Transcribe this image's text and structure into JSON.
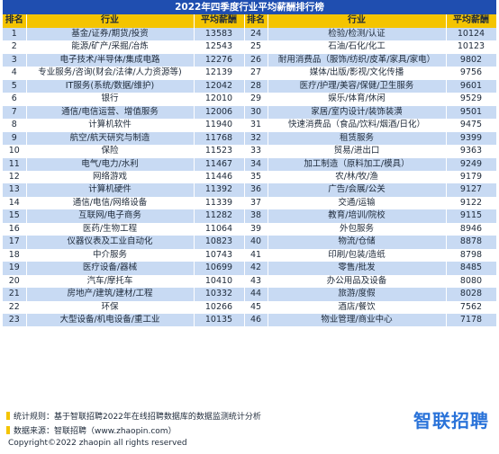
{
  "title": "2022年四季度行业平均薪酬排行榜",
  "headers": {
    "rank": "排名",
    "industry": "行业",
    "salary": "平均薪酬"
  },
  "rows": [
    {
      "l": [
        "1",
        "基金/证券/期货/投资",
        "13583"
      ],
      "r": [
        "24",
        "检验/检测/认证",
        "10124"
      ]
    },
    {
      "l": [
        "2",
        "能源/矿产/采掘/冶炼",
        "12543"
      ],
      "r": [
        "25",
        "石油/石化/化工",
        "10123"
      ]
    },
    {
      "l": [
        "3",
        "电子技术/半导体/集成电路",
        "12276"
      ],
      "r": [
        "26",
        "耐用消费品（服饰/纺织/皮革/家具/家电）",
        "9802"
      ]
    },
    {
      "l": [
        "4",
        "专业服务/咨询(财会/法律/人力资源等)",
        "12139"
      ],
      "r": [
        "27",
        "媒体/出版/影视/文化传播",
        "9756"
      ]
    },
    {
      "l": [
        "5",
        "IT服务(系统/数据/维护)",
        "12042"
      ],
      "r": [
        "28",
        "医疗/护理/美容/保健/卫生服务",
        "9601"
      ]
    },
    {
      "l": [
        "6",
        "银行",
        "12010"
      ],
      "r": [
        "29",
        "娱乐/体育/休闲",
        "9529"
      ]
    },
    {
      "l": [
        "7",
        "通信/电信运营、增值服务",
        "12006"
      ],
      "r": [
        "30",
        "家居/室内设计/装饰装潢",
        "9501"
      ]
    },
    {
      "l": [
        "8",
        "计算机软件",
        "11940"
      ],
      "r": [
        "31",
        "快速消费品（食品/饮料/烟酒/日化）",
        "9475"
      ]
    },
    {
      "l": [
        "9",
        "航空/航天研究与制造",
        "11768"
      ],
      "r": [
        "32",
        "租赁服务",
        "9399"
      ]
    },
    {
      "l": [
        "10",
        "保险",
        "11523"
      ],
      "r": [
        "33",
        "贸易/进出口",
        "9363"
      ]
    },
    {
      "l": [
        "11",
        "电气/电力/水利",
        "11467"
      ],
      "r": [
        "34",
        "加工制造（原料加工/模具）",
        "9249"
      ]
    },
    {
      "l": [
        "12",
        "网络游戏",
        "11446"
      ],
      "r": [
        "35",
        "农/林/牧/渔",
        "9179"
      ]
    },
    {
      "l": [
        "13",
        "计算机硬件",
        "11392"
      ],
      "r": [
        "36",
        "广告/会展/公关",
        "9127"
      ]
    },
    {
      "l": [
        "14",
        "通信/电信/网络设备",
        "11339"
      ],
      "r": [
        "37",
        "交通/运输",
        "9122"
      ]
    },
    {
      "l": [
        "15",
        "互联网/电子商务",
        "11282"
      ],
      "r": [
        "38",
        "教育/培训/院校",
        "9115"
      ]
    },
    {
      "l": [
        "16",
        "医药/生物工程",
        "11064"
      ],
      "r": [
        "39",
        "外包服务",
        "8946"
      ]
    },
    {
      "l": [
        "17",
        "仪器仪表及工业自动化",
        "10823"
      ],
      "r": [
        "40",
        "物流/仓储",
        "8878"
      ]
    },
    {
      "l": [
        "18",
        "中介服务",
        "10743"
      ],
      "r": [
        "41",
        "印刷/包装/造纸",
        "8798"
      ]
    },
    {
      "l": [
        "19",
        "医疗设备/器械",
        "10699"
      ],
      "r": [
        "42",
        "零售/批发",
        "8485"
      ]
    },
    {
      "l": [
        "20",
        "汽车/摩托车",
        "10410"
      ],
      "r": [
        "43",
        "办公用品及设备",
        "8080"
      ]
    },
    {
      "l": [
        "21",
        "房地产/建筑/建材/工程",
        "10332"
      ],
      "r": [
        "44",
        "旅游/度假",
        "8028"
      ]
    },
    {
      "l": [
        "22",
        "环保",
        "10266"
      ],
      "r": [
        "45",
        "酒店/餐饮",
        "7562"
      ]
    },
    {
      "l": [
        "23",
        "大型设备/机电设备/重工业",
        "10135"
      ],
      "r": [
        "46",
        "物业管理/商业中心",
        "7178"
      ]
    }
  ],
  "footer": {
    "rule": "统计规则：基于智联招聘2022年在线招聘数据库的数据监测统计分析",
    "source": "数据来源：智联招聘（www.zhaopin.com）",
    "copyright": "Copyright©2022 zhaopin all rights reserved",
    "logo": "智联招聘"
  },
  "colors": {
    "title_bg": "#1f4eb0",
    "header_bg": "#f4c400",
    "stripe": "#c8daf3",
    "logo": "#2a73d9"
  }
}
